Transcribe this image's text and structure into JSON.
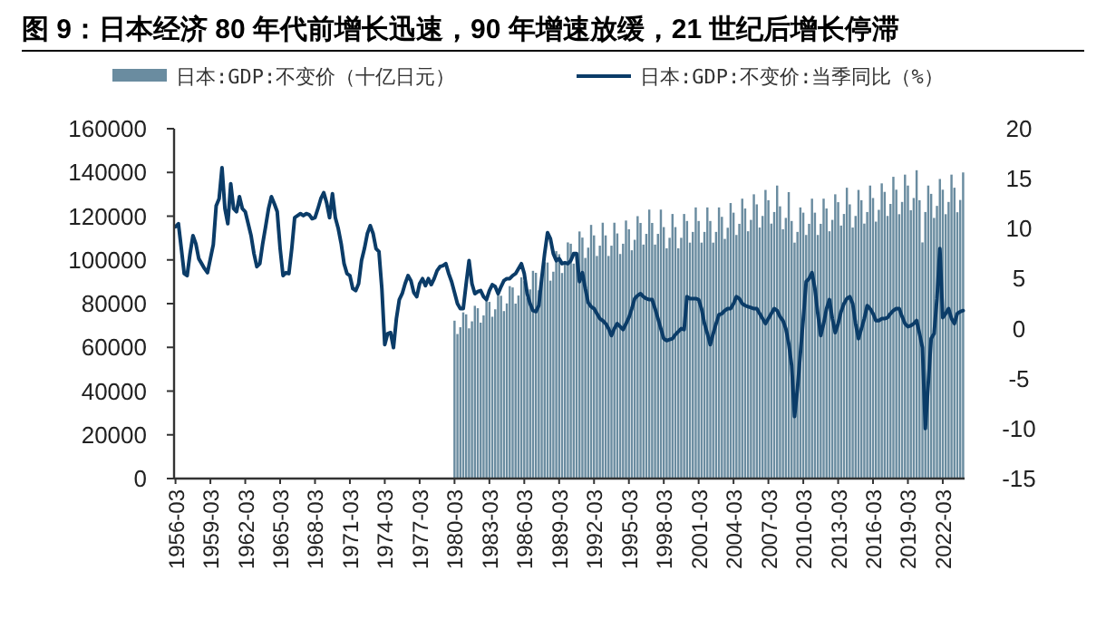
{
  "chart_data": {
    "type": "bar",
    "title": "图 9：日本经济 80 年代前增长迅速，90 年增速放缓，21 世纪后增长停滞",
    "categories": [
      "1956-03",
      null,
      null,
      null,
      null,
      null,
      null,
      null,
      null,
      null,
      null,
      null,
      "1959-03",
      null,
      null,
      null,
      null,
      null,
      null,
      null,
      null,
      null,
      null,
      null,
      "1962-03",
      null,
      null,
      null,
      null,
      null,
      null,
      null,
      null,
      null,
      null,
      null,
      "1965-03",
      null,
      null,
      null,
      null,
      null,
      null,
      null,
      null,
      null,
      null,
      null,
      "1968-03",
      null,
      null,
      null,
      null,
      null,
      null,
      null,
      null,
      null,
      null,
      null,
      "1971-03",
      null,
      null,
      null,
      null,
      null,
      null,
      null,
      null,
      null,
      null,
      null,
      "1974-03",
      null,
      null,
      null,
      null,
      null,
      null,
      null,
      null,
      null,
      null,
      null,
      "1977-03",
      null,
      null,
      null,
      null,
      null,
      null,
      null,
      null,
      null,
      null,
      null,
      "1980-03",
      null,
      null,
      null,
      null,
      null,
      null,
      null,
      null,
      null,
      null,
      null,
      "1983-03",
      null,
      null,
      null,
      null,
      null,
      null,
      null,
      null,
      null,
      null,
      null,
      "1986-03",
      null,
      null,
      null,
      null,
      null,
      null,
      null,
      null,
      null,
      null,
      null,
      "1989-03",
      null,
      null,
      null,
      null,
      null,
      null,
      null,
      null,
      null,
      null,
      null,
      "1992-03",
      null,
      null,
      null,
      null,
      null,
      null,
      null,
      null,
      null,
      null,
      null,
      "1995-03",
      null,
      null,
      null,
      null,
      null,
      null,
      null,
      null,
      null,
      null,
      null,
      "1998-03",
      null,
      null,
      null,
      null,
      null,
      null,
      null,
      null,
      null,
      null,
      null,
      "2001-03",
      null,
      null,
      null,
      null,
      null,
      null,
      null,
      null,
      null,
      null,
      null,
      "2004-03",
      null,
      null,
      null,
      null,
      null,
      null,
      null,
      null,
      null,
      null,
      null,
      "2007-03",
      null,
      null,
      null,
      null,
      null,
      null,
      null,
      null,
      null,
      null,
      null,
      "2010-03",
      null,
      null,
      null,
      null,
      null,
      null,
      null,
      null,
      null,
      null,
      null,
      "2013-03",
      null,
      null,
      null,
      null,
      null,
      null,
      null,
      null,
      null,
      null,
      null,
      "2016-03",
      null,
      null,
      null,
      null,
      null,
      null,
      null,
      null,
      null,
      null,
      null,
      "2019-03",
      null,
      null,
      null,
      null,
      null,
      null,
      null,
      null,
      null,
      null,
      null,
      "2022-03",
      null,
      null,
      null,
      null,
      null,
      null,
      null
    ],
    "series": [
      {
        "name": "日本:GDP:不变价（十亿日元）",
        "color": "#6a8ca0",
        "values": [
          null,
          null,
          null,
          null,
          null,
          null,
          null,
          null,
          null,
          null,
          null,
          null,
          null,
          null,
          null,
          null,
          null,
          null,
          null,
          null,
          null,
          null,
          null,
          null,
          null,
          null,
          null,
          null,
          null,
          null,
          null,
          null,
          null,
          null,
          null,
          null,
          null,
          null,
          null,
          null,
          null,
          null,
          null,
          null,
          null,
          null,
          null,
          null,
          null,
          null,
          null,
          null,
          null,
          null,
          null,
          null,
          null,
          null,
          null,
          null,
          null,
          null,
          null,
          null,
          null,
          null,
          null,
          null,
          null,
          null,
          null,
          null,
          null,
          null,
          null,
          null,
          null,
          null,
          null,
          null,
          null,
          null,
          null,
          null,
          null,
          null,
          null,
          null,
          null,
          null,
          null,
          null,
          null,
          null,
          null,
          null,
          72200,
          66100,
          69200,
          76000,
          75100,
          68700,
          71900,
          79000,
          77900,
          71300,
          74600,
          82000,
          80800,
          74000,
          77400,
          85000,
          83600,
          76600,
          80100,
          88000,
          87400,
          80000,
          83700,
          92000,
          90300,
          82700,
          86500,
          95000,
          94100,
          86100,
          90100,
          99000,
          98800,
          90500,
          94600,
          104000,
          102600,
          94000,
          98300,
          108000,
          107400,
          98300,
          102800,
          113000,
          110200,
          100900,
          105600,
          116000,
          111200,
          101800,
          106500,
          117000,
          111200,
          101800,
          106500,
          117000,
          112100,
          102700,
          107400,
          118000,
          114000,
          104400,
          109200,
          120000,
          116900,
          107000,
          111900,
          123000,
          116900,
          107000,
          111900,
          123000,
          115000,
          105300,
          110100,
          121000,
          115000,
          105300,
          110100,
          121000,
          117800,
          107900,
          112800,
          124000,
          117800,
          107900,
          112800,
          124000,
          117800,
          107900,
          112800,
          124000,
          119700,
          109600,
          114700,
          126000,
          121600,
          111400,
          116500,
          128000,
          123500,
          113100,
          118300,
          130000,
          125400,
          114800,
          120100,
          132000,
          127300,
          116600,
          121900,
          134000,
          124500,
          114000,
          119200,
          131000,
          117800,
          107900,
          112800,
          124000,
          121600,
          111400,
          116500,
          128000,
          121600,
          111400,
          116500,
          128000,
          123500,
          113100,
          118300,
          130000,
          126400,
          115700,
          121000,
          133000,
          125400,
          114800,
          120100,
          132000,
          127300,
          116600,
          121900,
          134000,
          128300,
          117500,
          122900,
          135000,
          131100,
          120100,
          125600,
          138000,
          132100,
          120900,
          126500,
          139000,
          134000,
          122700,
          128300,
          141000,
          127300,
          108000,
          121900,
          134000,
          130200,
          119200,
          124700,
          137000,
          132100,
          120900,
          126500,
          139000,
          133000,
          121800,
          127400,
          140000
        ]
      },
      {
        "name": "日本:GDP:不变价:当季同比（%）",
        "type": "line",
        "axis": "y2",
        "color": "#0b3c68",
        "values": [
          10.2,
          10.5,
          8,
          5.5,
          5.3,
          7.5,
          9.3,
          8.5,
          7,
          6.5,
          6,
          5.6,
          7,
          8.4,
          12.3,
          13,
          16.1,
          12,
          10.5,
          14.5,
          12,
          11.7,
          13.2,
          12,
          11.7,
          10.5,
          9.3,
          7.5,
          6.2,
          6.5,
          8.5,
          10.2,
          12,
          13.2,
          12.5,
          11.7,
          8,
          5.3,
          5.6,
          5.5,
          8,
          11.1,
          11.3,
          11.5,
          11.3,
          11.5,
          11.4,
          11,
          11.1,
          12,
          13,
          13.6,
          12.6,
          11.1,
          13.5,
          11.1,
          10,
          8.5,
          6.5,
          5.5,
          5.3,
          4,
          3.8,
          4.5,
          6.8,
          8,
          9.5,
          10.3,
          9.5,
          8,
          7.7,
          4,
          -1.6,
          -0.5,
          -0.4,
          -1.9,
          1,
          2.9,
          3.5,
          4.5,
          5.3,
          4.8,
          3.6,
          3.2,
          4.5,
          5,
          4.3,
          5,
          4.4,
          5,
          5.8,
          6.2,
          6.3,
          6.5,
          5.5,
          4.7,
          3.6,
          2.5,
          2,
          2,
          4.5,
          6.8,
          4.5,
          3.5,
          3.7,
          3.8,
          3.2,
          2.9,
          3.8,
          4.4,
          4.2,
          3.5,
          4.2,
          4.8,
          5,
          5,
          5.3,
          5.5,
          6,
          6.5,
          5.5,
          3.5,
          2.5,
          1.8,
          1.7,
          2.3,
          5,
          7.5,
          9.6,
          9,
          7.5,
          6.8,
          7,
          6.5,
          6.6,
          6.5,
          6.8,
          7.5,
          7.5,
          4.7,
          5.6,
          4,
          2.6,
          2.2,
          2,
          1.5,
          1,
          0.8,
          0.5,
          0,
          -0.7,
          0,
          0.5,
          0.2,
          -0.1,
          0.5,
          1.1,
          2,
          3,
          3.3,
          3.5,
          3.2,
          3,
          2.9,
          2.9,
          2,
          1,
          0,
          -1,
          -1.2,
          -1.1,
          -1,
          -0.6,
          -0.3,
          0,
          -0.1,
          3.2,
          3,
          3,
          3,
          2.9,
          2,
          0.5,
          -0.5,
          -1.6,
          -0.5,
          0.5,
          1.4,
          1.5,
          1.8,
          2,
          2,
          2.5,
          3.2,
          3,
          2.5,
          2.3,
          2.2,
          2.1,
          2,
          2,
          1.5,
          1,
          0.5,
          1,
          1.5,
          2,
          1.8,
          1.2,
          0.8,
          0,
          -1.5,
          -3.7,
          -8.8,
          -6,
          -2.5,
          1,
          4.7,
          5,
          5.6,
          4,
          1.5,
          -0.7,
          0.5,
          2,
          2.9,
          1,
          -0.4,
          0.5,
          1.7,
          2.5,
          3,
          3.2,
          2.5,
          0.5,
          -1,
          0,
          1,
          2.3,
          2,
          1.5,
          0.8,
          0.8,
          1,
          1,
          1.1,
          1.5,
          1.8,
          2,
          2,
          1.2,
          0.5,
          0.2,
          0.3,
          0.5,
          0.8,
          -0.5,
          -1.9,
          -10,
          -5.5,
          -1,
          -0.5,
          3,
          8,
          1.1,
          1.5,
          2,
          1,
          0.5,
          1.5,
          1.7,
          1.8
        ]
      }
    ],
    "ylim": [
      0,
      160000
    ],
    "yticks": [
      0,
      20000,
      40000,
      60000,
      80000,
      100000,
      120000,
      140000,
      160000
    ],
    "y2lim": [
      -15,
      20
    ],
    "y2ticks": [
      -15,
      -10,
      -5,
      0,
      5,
      10,
      15,
      20
    ],
    "legend": "top",
    "grid": false
  }
}
